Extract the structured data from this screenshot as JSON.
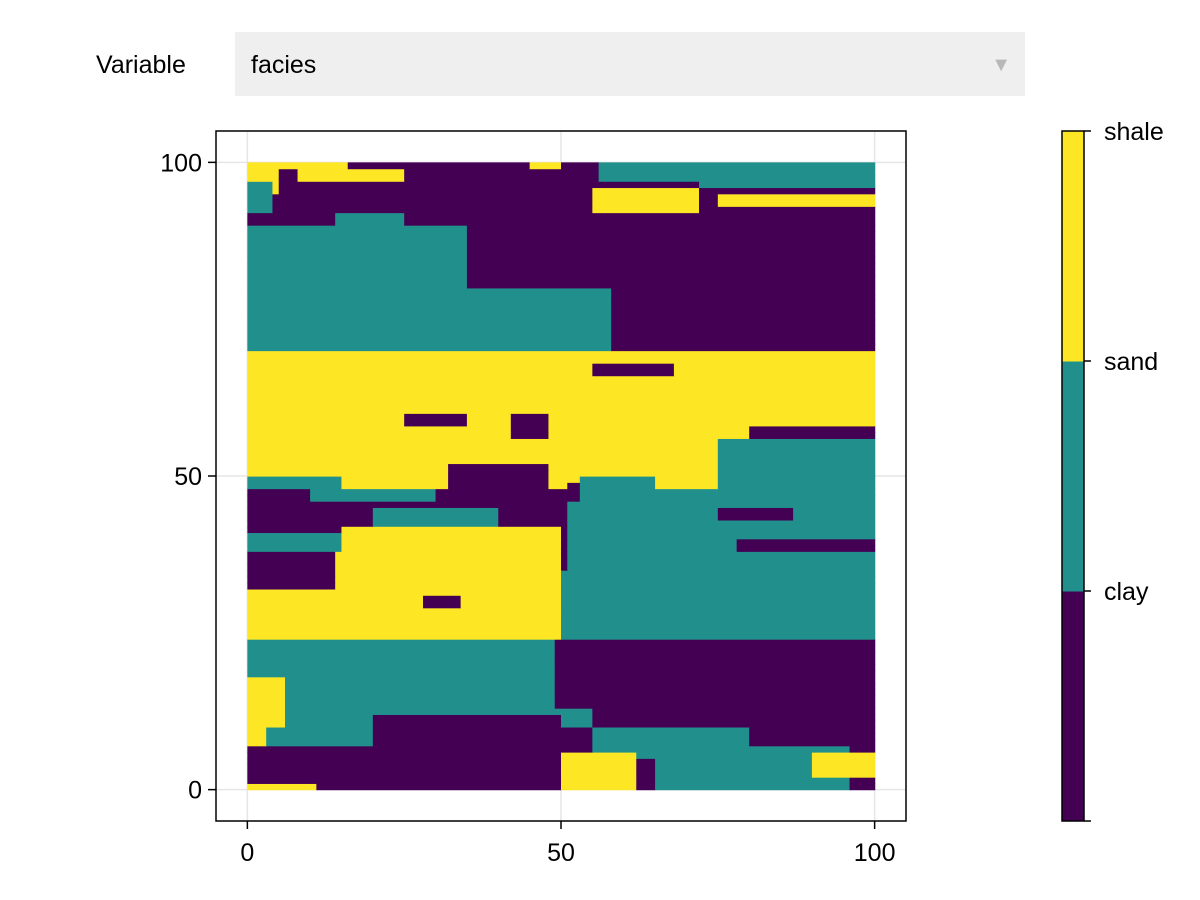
{
  "controls": {
    "variable_label": "Variable",
    "variable_value": "facies",
    "dropdown_icon": "triangle-down-icon"
  },
  "colors": {
    "clay": "#440154",
    "sand": "#21908c",
    "shale": "#fde724",
    "grid": "#e6e6e6",
    "dropdown_bg": "#efefef"
  },
  "chart_data": {
    "type": "heatmap",
    "title": "",
    "xlabel": "",
    "ylabel": "",
    "xlim": [
      -5,
      105
    ],
    "ylim": [
      -5,
      105
    ],
    "x_ticks": [
      "0",
      "50",
      "100"
    ],
    "y_ticks": [
      "0",
      "50",
      "100"
    ],
    "grid": true,
    "grid_size": [
      100,
      100
    ],
    "categories": [
      "clay",
      "sand",
      "shale"
    ],
    "colorbar_labels": [
      "clay",
      "sand",
      "shale"
    ],
    "legend_placement": "right",
    "regions": [
      {
        "category": "shale",
        "rows": [
          [
            99,
            100,
            0,
            16
          ],
          [
            99,
            100,
            45,
            56
          ],
          [
            95,
            99,
            0,
            5
          ],
          [
            97,
            99,
            8,
            25
          ],
          [
            92,
            96,
            55,
            72
          ],
          [
            93,
            95,
            75,
            100
          ],
          [
            88,
            91,
            60,
            72
          ]
        ]
      },
      {
        "category": "clay",
        "rows": [
          [
            99,
            100,
            50,
            60
          ],
          [
            99,
            100,
            70,
            72
          ],
          [
            96,
            99,
            5,
            8
          ],
          [
            96,
            99,
            25,
            55
          ],
          [
            91,
            95,
            10,
            55
          ],
          [
            86,
            92,
            4,
            14
          ],
          [
            85,
            92,
            30,
            90
          ],
          [
            80,
            90,
            62,
            100
          ],
          [
            77,
            85,
            35,
            50
          ],
          [
            75,
            81,
            50,
            100
          ],
          [
            70,
            76,
            60,
            100
          ]
        ]
      },
      {
        "category": "sand",
        "rows": [
          [
            97,
            100,
            56,
            100
          ],
          [
            92,
            97,
            0,
            4
          ],
          [
            89,
            92,
            14,
            25
          ],
          [
            75,
            90,
            0,
            35
          ],
          [
            70,
            80,
            0,
            58
          ],
          [
            96,
            99,
            72,
            100
          ]
        ]
      },
      {
        "category": "shale",
        "rows": [
          [
            63,
            70,
            0,
            100
          ],
          [
            55,
            63,
            0,
            100
          ],
          [
            48,
            55,
            0,
            75
          ]
        ]
      },
      {
        "category": "clay",
        "rows": [
          [
            66,
            68,
            55,
            68
          ],
          [
            58,
            60,
            25,
            35
          ],
          [
            56,
            60,
            42,
            48
          ],
          [
            55,
            57,
            82,
            100
          ],
          [
            52,
            58,
            80,
            100
          ],
          [
            48,
            52,
            32,
            48
          ],
          [
            46,
            49,
            51,
            58
          ]
        ]
      },
      {
        "category": "sand",
        "rows": [
          [
            48,
            56,
            75,
            100
          ],
          [
            45,
            50,
            53,
            65
          ],
          [
            40,
            48,
            53,
            100
          ],
          [
            35,
            46,
            51,
            100
          ],
          [
            24,
            35,
            42,
            100
          ]
        ]
      },
      {
        "category": "clay",
        "rows": [
          [
            44,
            47,
            0,
            20
          ],
          [
            40,
            42,
            0,
            10
          ],
          [
            43,
            45,
            75,
            87
          ],
          [
            38,
            40,
            78,
            100
          ]
        ]
      },
      {
        "category": "sand",
        "rows": [
          [
            48,
            50,
            0,
            15
          ],
          [
            46,
            48,
            10,
            30
          ],
          [
            42,
            45,
            20,
            40
          ],
          [
            38,
            41,
            0,
            15
          ]
        ]
      },
      {
        "category": "shale",
        "rows": [
          [
            38,
            42,
            15,
            50
          ],
          [
            24,
            38,
            0,
            50
          ],
          [
            22,
            28,
            20,
            42
          ]
        ]
      },
      {
        "category": "clay",
        "rows": [
          [
            32,
            38,
            0,
            14
          ],
          [
            29,
            31,
            28,
            34
          ],
          [
            22,
            24,
            20,
            24
          ]
        ]
      },
      {
        "category": "sand",
        "rows": [
          [
            14,
            24,
            0,
            50
          ],
          [
            10,
            20,
            6,
            55
          ],
          [
            5,
            12,
            0,
            25
          ],
          [
            18,
            22,
            0,
            3
          ]
        ]
      },
      {
        "category": "shale",
        "rows": [
          [
            10,
            18,
            0,
            6
          ],
          [
            6,
            10,
            0,
            3
          ]
        ]
      },
      {
        "category": "clay",
        "rows": [
          [
            13,
            24,
            49,
            100
          ],
          [
            6,
            15,
            55,
            100
          ],
          [
            2,
            12,
            20,
            50
          ],
          [
            0,
            7,
            0,
            100
          ]
        ]
      },
      {
        "category": "sand",
        "rows": [
          [
            0,
            7,
            65,
            96
          ],
          [
            5,
            10,
            55,
            80
          ]
        ]
      },
      {
        "category": "shale",
        "rows": [
          [
            0,
            6,
            50,
            62
          ],
          [
            2,
            6,
            90,
            100
          ],
          [
            0,
            1,
            0,
            11
          ]
        ]
      }
    ]
  }
}
